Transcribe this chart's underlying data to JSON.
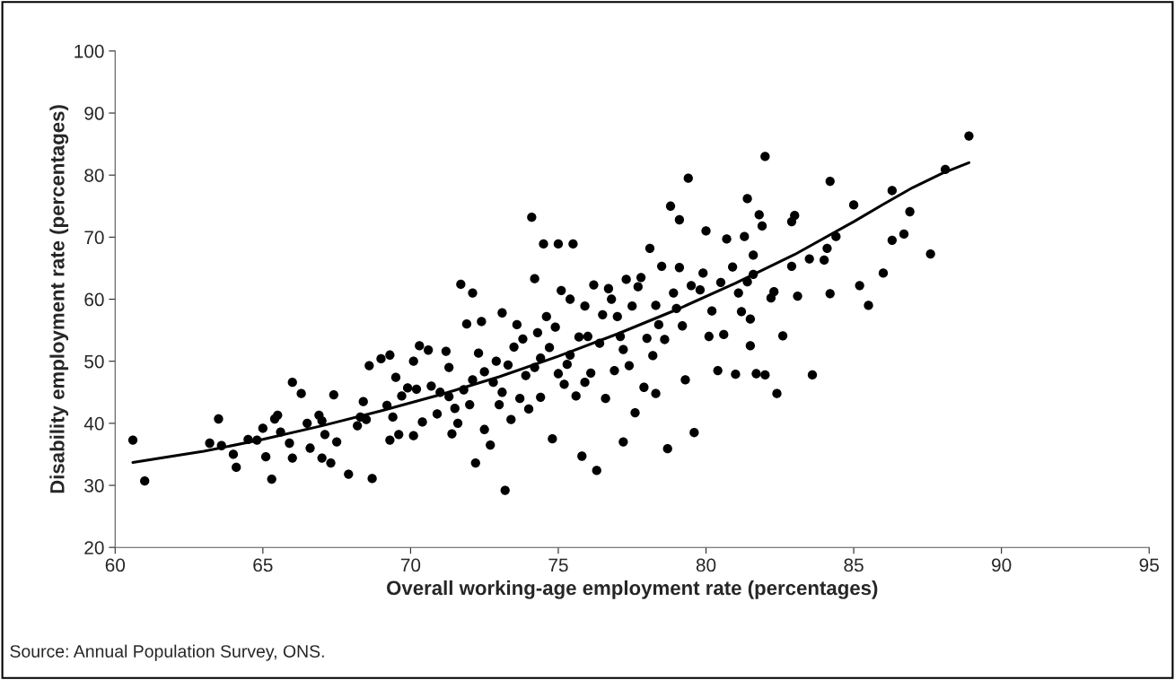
{
  "chart_data": {
    "type": "scatter",
    "xlabel": "Overall working-age employment rate (percentages)",
    "ylabel": "Disability employment rate (percentages)",
    "annotations": [
      "Source: Annual Population Survey, ONS."
    ],
    "xlim": [
      60,
      95
    ],
    "ylim": [
      20,
      100
    ],
    "xticks": [
      60,
      65,
      70,
      75,
      80,
      85,
      90,
      95
    ],
    "yticks": [
      20,
      30,
      40,
      50,
      60,
      70,
      80,
      90,
      100
    ],
    "grid": false,
    "marker": "circle",
    "series": [
      {
        "color": "#000000",
        "x": [
          60.6,
          61.0,
          63.2,
          63.5,
          63.6,
          64.0,
          64.1,
          64.5,
          64.8,
          65.0,
          65.1,
          65.4,
          65.5,
          65.6,
          65.3,
          65.9,
          66.0,
          66.0,
          66.3,
          66.5,
          66.6,
          66.9,
          67.0,
          67.0,
          67.1,
          67.3,
          67.4,
          67.5,
          67.9,
          68.2,
          68.3,
          68.4,
          68.5,
          68.6,
          68.7,
          69.0,
          69.2,
          69.3,
          69.3,
          69.4,
          69.5,
          69.6,
          69.7,
          69.9,
          70.1,
          70.1,
          70.2,
          70.3,
          70.4,
          70.6,
          70.7,
          70.9,
          71.0,
          71.2,
          71.3,
          71.3,
          71.4,
          71.5,
          71.6,
          71.7,
          71.8,
          71.9,
          72.0,
          72.1,
          72.1,
          72.2,
          72.3,
          72.4,
          72.5,
          72.5,
          72.7,
          72.8,
          72.9,
          73.0,
          73.1,
          73.1,
          73.2,
          73.3,
          73.4,
          73.5,
          73.6,
          73.7,
          73.8,
          73.9,
          74.0,
          74.1,
          74.2,
          74.2,
          74.3,
          74.4,
          74.4,
          74.5,
          74.6,
          74.7,
          74.8,
          74.9,
          75.0,
          75.0,
          75.1,
          75.2,
          75.3,
          75.4,
          75.4,
          75.5,
          75.6,
          75.7,
          75.8,
          75.9,
          75.9,
          76.0,
          76.1,
          76.2,
          76.3,
          76.4,
          76.5,
          76.6,
          76.7,
          76.8,
          76.9,
          77.0,
          77.1,
          77.2,
          77.2,
          77.3,
          77.4,
          77.5,
          77.6,
          77.7,
          77.8,
          77.9,
          78.0,
          78.1,
          78.2,
          78.3,
          78.3,
          78.4,
          78.5,
          78.6,
          78.7,
          78.8,
          78.9,
          79.0,
          79.1,
          79.1,
          79.2,
          79.3,
          79.4,
          79.5,
          79.6,
          79.8,
          79.9,
          80.0,
          80.1,
          80.2,
          80.4,
          80.5,
          80.6,
          80.7,
          80.9,
          81.0,
          81.1,
          81.2,
          81.3,
          81.4,
          81.5,
          81.6,
          81.7,
          81.8,
          82.0,
          82.3,
          81.4,
          81.5,
          81.6,
          81.9,
          82.0,
          82.2,
          82.4,
          82.6,
          82.9,
          82.9,
          83.0,
          83.1,
          83.5,
          83.6,
          84.0,
          84.1,
          84.2,
          84.2,
          84.4,
          85.0,
          85.2,
          85.5,
          86.0,
          86.3,
          86.3,
          86.7,
          86.9,
          87.6,
          88.1,
          88.9
        ],
        "values": [
          37.3,
          30.7,
          36.8,
          40.7,
          36.4,
          35.0,
          32.9,
          37.4,
          37.3,
          39.2,
          34.6,
          40.7,
          41.3,
          38.6,
          31.0,
          36.8,
          34.4,
          46.6,
          44.8,
          40.0,
          36.0,
          41.3,
          40.4,
          34.4,
          38.2,
          33.6,
          44.6,
          37.0,
          31.8,
          39.6,
          41.0,
          43.5,
          40.6,
          49.3,
          31.1,
          50.4,
          42.9,
          51.0,
          37.3,
          41.0,
          47.4,
          38.2,
          44.4,
          45.7,
          50.0,
          38.0,
          45.5,
          52.5,
          40.2,
          51.8,
          46.0,
          41.5,
          45.0,
          51.6,
          44.3,
          49.0,
          38.3,
          42.4,
          40.0,
          62.4,
          45.4,
          56.0,
          43.0,
          61.0,
          47.0,
          33.6,
          51.3,
          56.4,
          39.0,
          48.3,
          36.5,
          46.6,
          50.0,
          43.0,
          57.8,
          45.0,
          29.2,
          49.4,
          40.6,
          52.3,
          55.9,
          44.0,
          53.6,
          47.7,
          42.3,
          73.2,
          63.3,
          49.0,
          54.6,
          44.2,
          50.5,
          68.9,
          57.2,
          52.2,
          37.5,
          55.5,
          68.9,
          48.0,
          61.4,
          46.3,
          49.5,
          51.0,
          60.0,
          68.9,
          44.4,
          53.9,
          34.7,
          58.9,
          46.6,
          54.0,
          48.1,
          62.3,
          32.4,
          52.9,
          57.5,
          44.0,
          61.7,
          60.0,
          48.5,
          57.2,
          54.0,
          51.9,
          37.0,
          63.2,
          49.3,
          58.9,
          41.7,
          62.0,
          63.5,
          45.8,
          53.7,
          68.2,
          50.9,
          59.0,
          44.8,
          55.9,
          65.3,
          53.5,
          35.9,
          75.0,
          61.0,
          58.5,
          72.8,
          65.1,
          55.7,
          47.0,
          79.5,
          62.2,
          38.5,
          61.5,
          64.2,
          71.0,
          54.0,
          58.1,
          48.5,
          62.7,
          54.3,
          69.7,
          65.2,
          47.9,
          61.0,
          58.0,
          70.1,
          62.8,
          56.8,
          67.1,
          48.0,
          73.6,
          47.8,
          61.2,
          76.2,
          52.5,
          64.0,
          71.8,
          83.0,
          60.2,
          44.8,
          54.1,
          72.5,
          65.3,
          73.5,
          60.5,
          66.5,
          47.8,
          66.3,
          68.2,
          79.0,
          60.9,
          70.1,
          75.2,
          62.2,
          59.0,
          64.2,
          77.5,
          69.5,
          70.5,
          74.1,
          67.3,
          80.9,
          86.3
        ]
      },
      {
        "type": "line",
        "color": "#000000",
        "marker": "none",
        "line_style": "solid",
        "x": [
          60.6,
          63,
          65,
          67,
          69,
          71,
          73,
          75,
          77,
          79,
          81,
          83,
          85,
          86,
          87,
          88,
          88.9
        ],
        "values": [
          33.7,
          35.5,
          37.4,
          39.6,
          42.0,
          44.6,
          47.5,
          50.8,
          54.4,
          58.3,
          62.6,
          67.2,
          72.5,
          75.3,
          78.0,
          80.3,
          82.0
        ]
      }
    ]
  }
}
